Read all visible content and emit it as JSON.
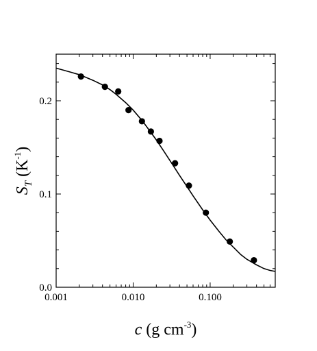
{
  "chart_data": {
    "type": "scatter",
    "xscale": "log",
    "xlim": [
      0.001,
      0.7
    ],
    "ylim": [
      0.0,
      0.25
    ],
    "grid": false,
    "xlabel": {
      "var": "c",
      "text": " (g cm",
      "sup": "-3",
      "close": ")"
    },
    "ylabel": {
      "var": "S",
      "sub": "T",
      "text": " (K",
      "sup": "-1",
      "close": ")"
    },
    "xticks": [
      {
        "value": 0.001,
        "label": "0.001"
      },
      {
        "value": 0.01,
        "label": "0.010"
      },
      {
        "value": 0.1,
        "label": "0.100"
      }
    ],
    "yticks": [
      {
        "value": 0.0,
        "label": "0.0"
      },
      {
        "value": 0.1,
        "label": "0.1"
      },
      {
        "value": 0.2,
        "label": "0.2"
      }
    ],
    "series": [
      {
        "type": "scatter",
        "marker": "filled-circle",
        "color": "#000000",
        "x": [
          0.0021,
          0.0043,
          0.0064,
          0.0087,
          0.013,
          0.017,
          0.022,
          0.035,
          0.053,
          0.088,
          0.18,
          0.37
        ],
        "y": [
          0.226,
          0.215,
          0.21,
          0.19,
          0.178,
          0.167,
          0.157,
          0.133,
          0.109,
          0.08,
          0.049,
          0.029
        ]
      },
      {
        "type": "line",
        "style": "solid",
        "color": "#000000",
        "x": [
          0.001,
          0.0015,
          0.002,
          0.003,
          0.004,
          0.005,
          0.006,
          0.008,
          0.01,
          0.013,
          0.016,
          0.02,
          0.025,
          0.03,
          0.04,
          0.05,
          0.06,
          0.08,
          0.1,
          0.13,
          0.16,
          0.2,
          0.25,
          0.3,
          0.4,
          0.5,
          0.6,
          0.7
        ],
        "y": [
          0.235,
          0.231,
          0.228,
          0.222,
          0.217,
          0.212,
          0.207,
          0.198,
          0.19,
          0.179,
          0.169,
          0.158,
          0.146,
          0.136,
          0.12,
          0.108,
          0.098,
          0.083,
          0.072,
          0.06,
          0.051,
          0.043,
          0.035,
          0.03,
          0.024,
          0.02,
          0.018,
          0.017
        ]
      }
    ]
  }
}
